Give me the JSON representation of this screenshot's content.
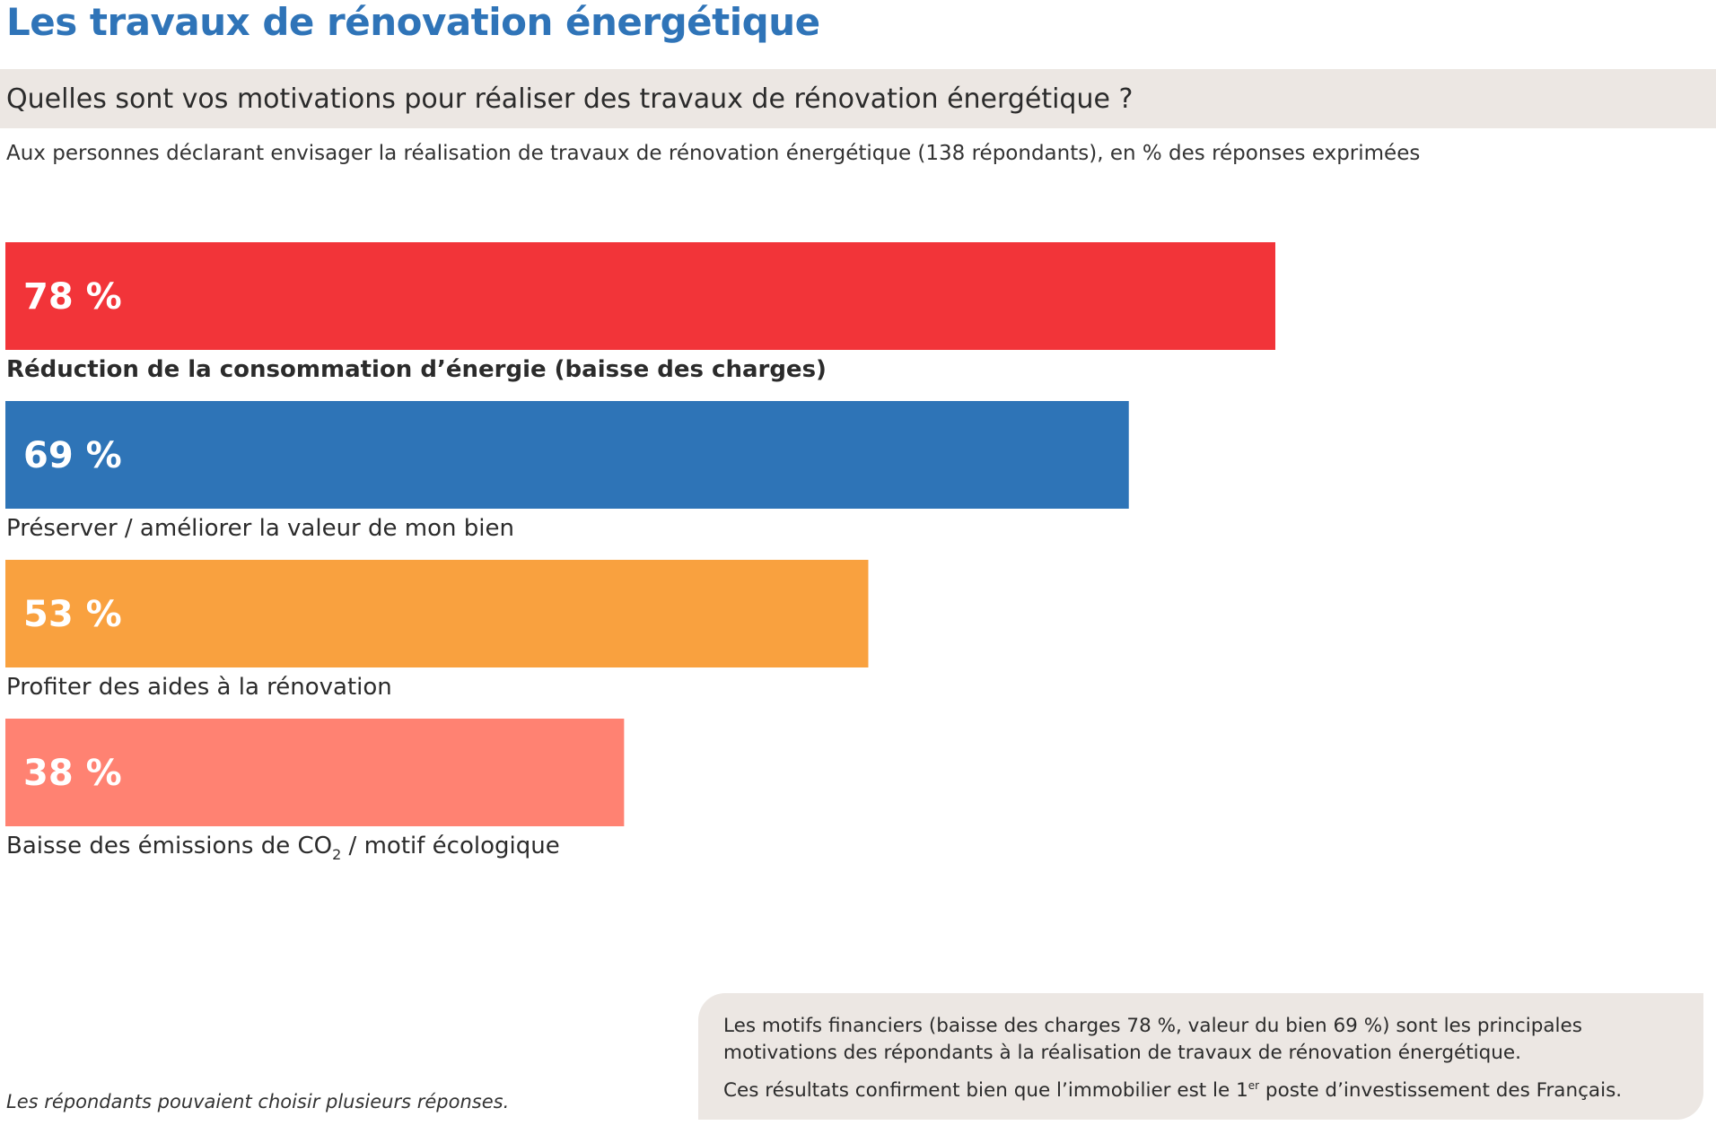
{
  "header": {
    "title": "Les travaux de rénovation énergétique",
    "question": "Quelles sont vos motivations pour réaliser des travaux de rénovation énergétique ?",
    "subtitle": "Aux personnes déclarant envisager la réalisation de travaux de rénovation énergétique (138 répondants), en % des réponses exprimées"
  },
  "chart_data": {
    "type": "bar",
    "orientation": "horizontal",
    "categories": [
      "Réduction de la consommation d’énergie (baisse des charges)",
      "Préserver / améliorer la valeur de mon bien",
      "Profiter des aides à la rénovation",
      "Baisse des émissions de CO2 / motif écologique"
    ],
    "values": [
      78,
      69,
      53,
      38
    ],
    "value_labels": [
      "78 %",
      "69 %",
      "53 %",
      "38 %"
    ],
    "colors": [
      "#f23439",
      "#2e74b7",
      "#f9a13f",
      "#ff8272"
    ],
    "bold_category_index": 0,
    "xlim": [
      0,
      100
    ],
    "grid": false
  },
  "footnote": "Les répondants pouvaient choisir plusieurs réponses.",
  "callout": {
    "line1": "Les motifs financiers (baisse des charges 78 %, valeur du bien 69 %) sont les principales motivations des répondants à la réalisation de travaux de rénovation énergétique.",
    "line2_before": "Ces résultats confirment bien que l’immobilier est le 1",
    "line2_sup": "er",
    "line2_after": " poste d’investissement des Français."
  }
}
